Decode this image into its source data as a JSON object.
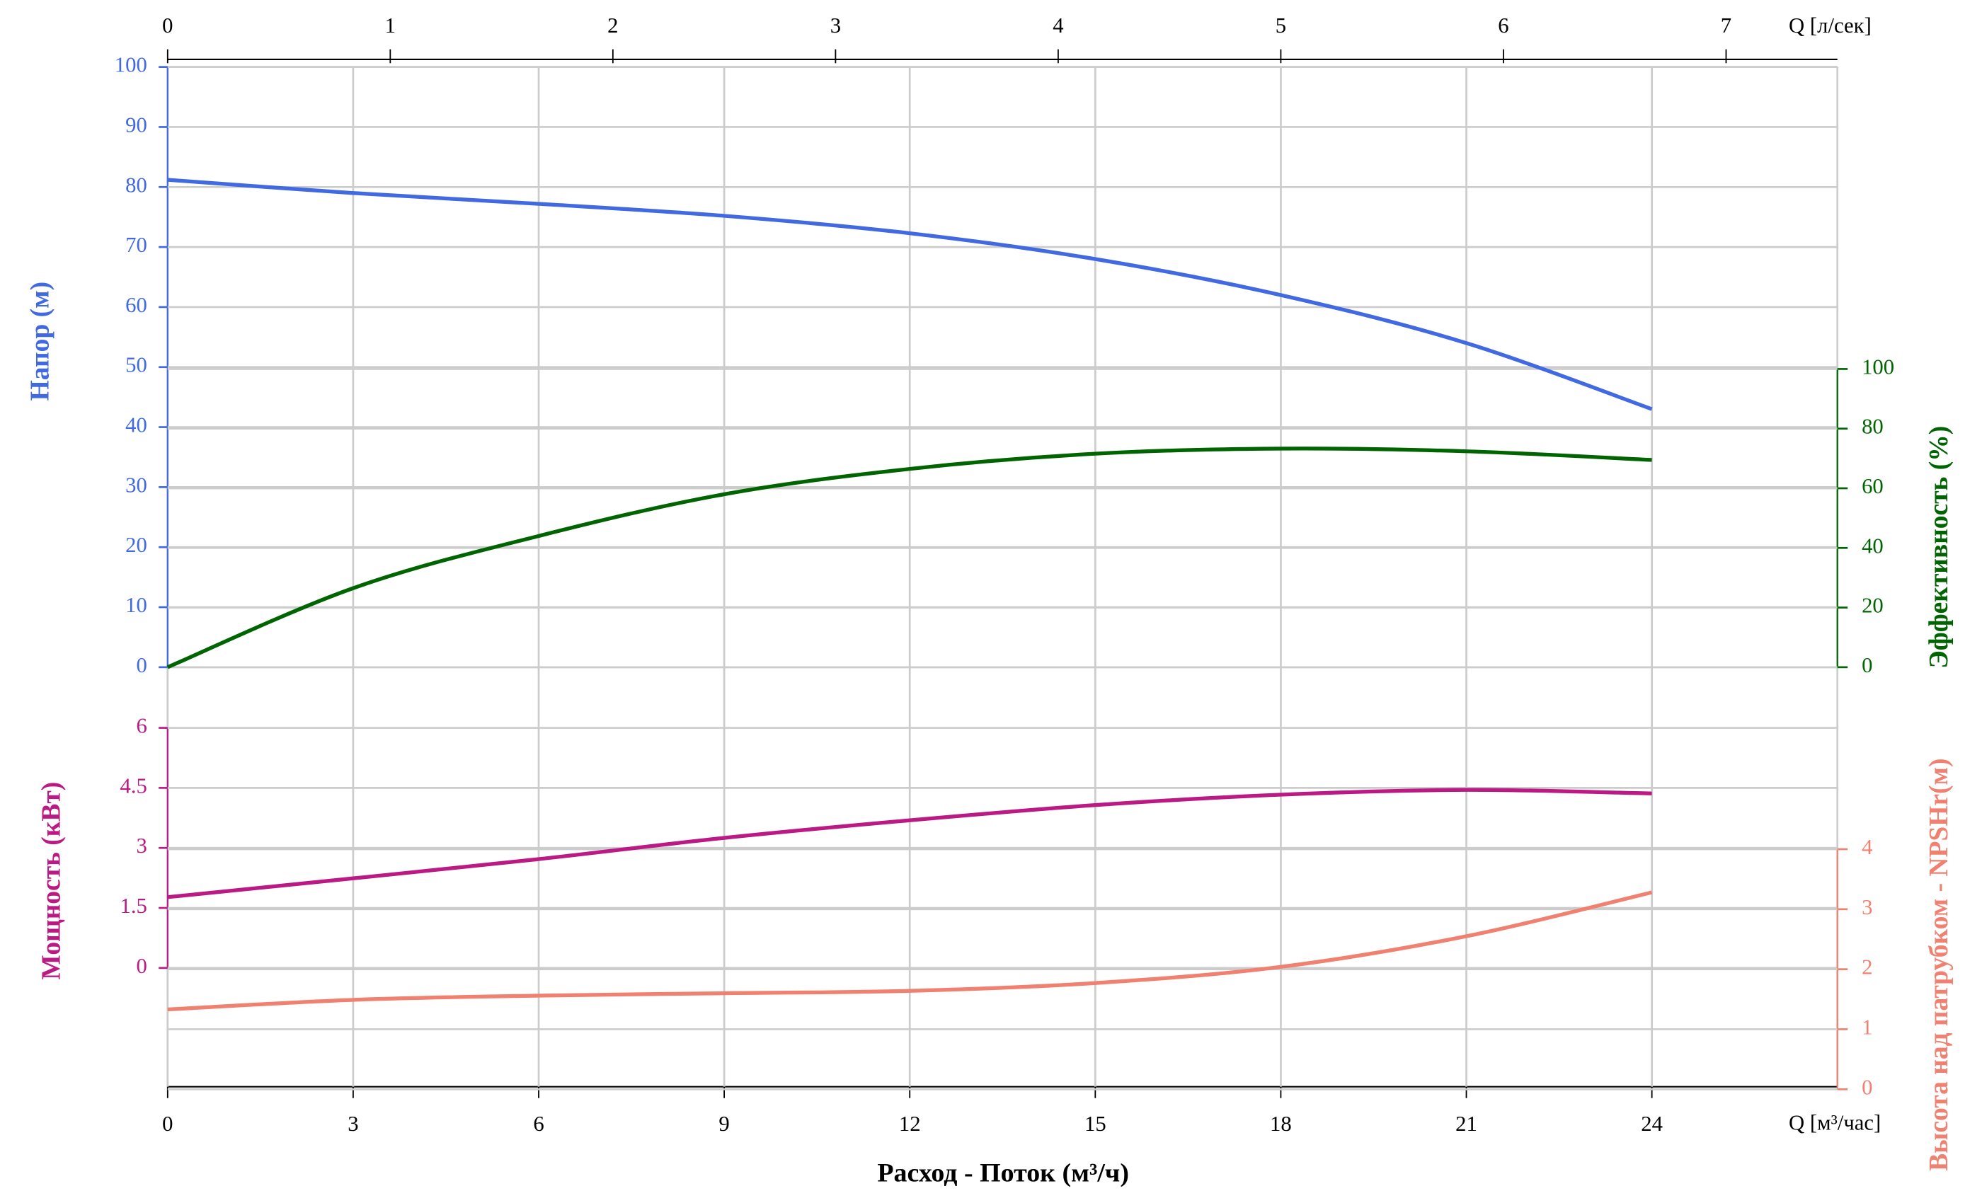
{
  "chart_data": {
    "type": "line",
    "x_label": "Расход - Поток (м³/ч)",
    "x_unit_label": "Q [м³/час]",
    "x2_unit_label": "Q [л/сек]",
    "xlim": [
      0,
      27
    ],
    "xticks": [
      0,
      3,
      6,
      9,
      12,
      15,
      18,
      21,
      24
    ],
    "x2lim": [
      0,
      7.5
    ],
    "x2ticks": [
      0,
      1,
      2,
      3,
      4,
      5,
      6,
      7
    ],
    "grid": true,
    "x": [
      0,
      3,
      6,
      9,
      12,
      15,
      18,
      21,
      24
    ],
    "panels": [
      {
        "label": "Напор (м)",
        "side": "left",
        "color": "#4169e1",
        "ylim": [
          0,
          100
        ],
        "yticks": [
          0,
          10,
          20,
          30,
          40,
          50,
          60,
          70,
          80,
          90,
          100
        ],
        "values": [
          81.2,
          79,
          77.2,
          75.2,
          72.3,
          68,
          62,
          54,
          43
        ]
      },
      {
        "label": "Эффективность (%)",
        "side": "right",
        "color": "#006400",
        "ylim": [
          0,
          100
        ],
        "yticks": [
          0,
          20,
          40,
          60,
          80,
          100
        ],
        "values": [
          0,
          26.5,
          44,
          58,
          66.5,
          71.6,
          73.3,
          72.4,
          69.5
        ]
      },
      {
        "label": "Мощность (кВт)",
        "side": "left",
        "color": "#bb1a85",
        "ylim": [
          0,
          6
        ],
        "yticks": [
          0,
          1.5,
          3,
          4.5,
          6
        ],
        "values": [
          1.77,
          2.24,
          2.72,
          3.25,
          3.69,
          4.07,
          4.33,
          4.45,
          4.36
        ]
      },
      {
        "label": "Высота над патрубком - NPSHr(м)",
        "side": "right",
        "color": "#f08070",
        "ylim": [
          0,
          4
        ],
        "yticks": [
          0,
          1,
          2,
          3,
          4
        ],
        "values": [
          1.33,
          1.49,
          1.56,
          1.6,
          1.64,
          1.77,
          2.04,
          2.55,
          3.28
        ]
      }
    ]
  }
}
